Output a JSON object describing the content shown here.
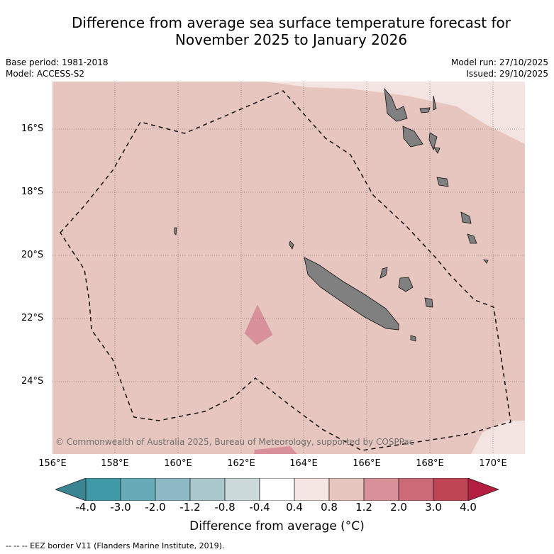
{
  "title_line1": "Difference from average sea surface temperature forecast for",
  "title_line2": "November 2025 to January 2026",
  "base_period": "Base period: 1981-2018",
  "model": "Model: ACCESS-S2",
  "model_run": "Model run: 27/10/2025",
  "issued": "Issued: 29/10/2025",
  "lat_labels": [
    "16°S",
    "18°S",
    "20°S",
    "22°S",
    "24°S"
  ],
  "lon_labels": [
    "156°E",
    "158°E",
    "160°E",
    "162°E",
    "164°E",
    "166°E",
    "168°E",
    "170°E"
  ],
  "credit": "© Commonwealth of Australia 2025, Bureau of Meteorology, supported by COSPPac",
  "colorbar": {
    "ticks": [
      "-4.0",
      "-3.0",
      "-2.0",
      "-1.2",
      "-0.8",
      "-0.4",
      "0.4",
      "0.8",
      "1.2",
      "2.0",
      "3.0",
      "4.0"
    ],
    "colors": [
      "#3f9aa8",
      "#67abb8",
      "#8cb9c3",
      "#aac8cc",
      "#ccdadc",
      "#ffffff",
      "#f5e5e3",
      "#e8c6c0",
      "#d99098",
      "#cc6a78",
      "#bf4454"
    ],
    "under_color": "#3b8593",
    "over_color": "#b21d40",
    "label": "Difference from average (°C)"
  },
  "footer": "-- -- -- EEZ border V11 (Flanders Marine Institute, 2019)."
}
